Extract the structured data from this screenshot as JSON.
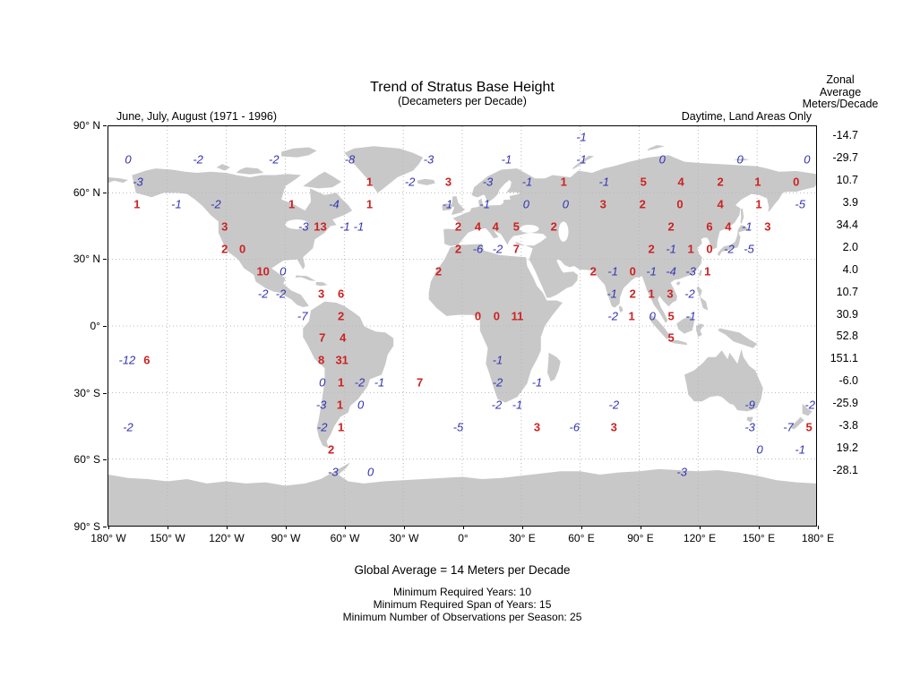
{
  "header": {
    "title": "Trend of Stratus Base Height",
    "subtitle": "(Decameters per Decade)",
    "left_caption": "June, July, August (1971 - 1996)",
    "right_caption": "Daytime, Land Areas Only"
  },
  "footer": {
    "global_average": "Global Average = 14 Meters per Decade",
    "notes": [
      "Minimum Required Years: 10",
      "Minimum Required Span of Years: 15",
      "Minimum Number of Observations per Season: 25"
    ]
  },
  "colors": {
    "positive": "#cc2222",
    "negative": "#3333b3",
    "land": "#c8c8c8",
    "grid": "#b8b8b8",
    "text": "#000000"
  },
  "chart_data": {
    "type": "scatter",
    "subtype": "gridded-value-world-map",
    "title": "Trend of Stratus Base Height",
    "units_label": "(Decameters per Decade)",
    "projection": "equirectangular",
    "lon_range": [
      -180,
      180
    ],
    "lat_range": [
      -90,
      90
    ],
    "grid": "dotted 30-degree graticule",
    "x_ticks": [
      {
        "lon": -180,
        "label": "180° W"
      },
      {
        "lon": -150,
        "label": "150° W"
      },
      {
        "lon": -120,
        "label": "120° W"
      },
      {
        "lon": -90,
        "label": "90° W"
      },
      {
        "lon": -60,
        "label": "60° W"
      },
      {
        "lon": -30,
        "label": "30° W"
      },
      {
        "lon": 0,
        "label": "0°"
      },
      {
        "lon": 30,
        "label": "30° E"
      },
      {
        "lon": 60,
        "label": "60° E"
      },
      {
        "lon": 90,
        "label": "90° E"
      },
      {
        "lon": 120,
        "label": "120° E"
      },
      {
        "lon": 150,
        "label": "150° E"
      },
      {
        "lon": 180,
        "label": "180° E"
      }
    ],
    "y_ticks": [
      {
        "lat": 90,
        "label": "90° N"
      },
      {
        "lat": 60,
        "label": "60° N"
      },
      {
        "lat": 30,
        "label": "30° N"
      },
      {
        "lat": 0,
        "label": "0°"
      },
      {
        "lat": -30,
        "label": "30° S"
      },
      {
        "lat": -60,
        "label": "60° S"
      },
      {
        "lat": -90,
        "label": "90° S"
      }
    ],
    "point_format": [
      "lon",
      "lat",
      "value",
      "color: r=red upright bold, b=blue italic"
    ],
    "points": [
      [
        60,
        85,
        "-1",
        "b"
      ],
      [
        -170,
        75,
        "0",
        "b"
      ],
      [
        -134.5,
        75,
        "-2",
        "b"
      ],
      [
        -96,
        75,
        "-2",
        "b"
      ],
      [
        -57.5,
        75,
        "-8",
        "b"
      ],
      [
        -17.5,
        75,
        "-3",
        "b"
      ],
      [
        22,
        75,
        "-1",
        "b"
      ],
      [
        60,
        75,
        "-1",
        "b"
      ],
      [
        101,
        75,
        "0",
        "b"
      ],
      [
        140.5,
        75,
        "0",
        "b"
      ],
      [
        174.5,
        75,
        "0",
        "b"
      ],
      [
        -165,
        65,
        "-3",
        "b"
      ],
      [
        -47.5,
        65,
        "1",
        "r"
      ],
      [
        -27,
        65,
        "-2",
        "b"
      ],
      [
        -7.5,
        65,
        "3",
        "r"
      ],
      [
        12.5,
        65,
        "-3",
        "b"
      ],
      [
        32.5,
        65,
        "-1",
        "b"
      ],
      [
        51,
        65,
        "1",
        "r"
      ],
      [
        71.5,
        65,
        "-1",
        "b"
      ],
      [
        91.5,
        65,
        "5",
        "r"
      ],
      [
        110.5,
        65,
        "4",
        "r"
      ],
      [
        130.5,
        65,
        "2",
        "r"
      ],
      [
        149.5,
        65,
        "1",
        "r"
      ],
      [
        169,
        65,
        "0",
        "r"
      ],
      [
        -165.5,
        55,
        "1",
        "r"
      ],
      [
        -145.5,
        55,
        "-1",
        "b"
      ],
      [
        -125.5,
        55,
        "-2",
        "b"
      ],
      [
        -87,
        55,
        "1",
        "r"
      ],
      [
        -65.5,
        55,
        "-4",
        "b"
      ],
      [
        -47.5,
        55,
        "1",
        "r"
      ],
      [
        -8,
        55,
        "-1",
        "b"
      ],
      [
        11,
        55,
        "-1",
        "b"
      ],
      [
        32,
        55,
        "0",
        "b"
      ],
      [
        52,
        55,
        "0",
        "b"
      ],
      [
        71,
        55,
        "3",
        "r"
      ],
      [
        91,
        55,
        "2",
        "r"
      ],
      [
        110,
        55,
        "0",
        "r"
      ],
      [
        130.5,
        55,
        "4",
        "r"
      ],
      [
        150,
        55,
        "1",
        "r"
      ],
      [
        171,
        55,
        "-5",
        "b"
      ],
      [
        -121,
        45,
        "3",
        "r"
      ],
      [
        -81,
        45,
        "-3",
        "b"
      ],
      [
        -72.5,
        45,
        "13",
        "r"
      ],
      [
        -60,
        45,
        "-1",
        "b"
      ],
      [
        -53,
        45,
        "-1",
        "b"
      ],
      [
        -2.5,
        45,
        "2",
        "r"
      ],
      [
        7.5,
        45,
        "4",
        "r"
      ],
      [
        16.5,
        45,
        "4",
        "r"
      ],
      [
        27,
        45,
        "5",
        "r"
      ],
      [
        46,
        45,
        "2",
        "r"
      ],
      [
        105.5,
        45,
        "2",
        "r"
      ],
      [
        125,
        45,
        "6",
        "r"
      ],
      [
        134.5,
        45,
        "4",
        "r"
      ],
      [
        144,
        45,
        "-1",
        "b"
      ],
      [
        154.5,
        45,
        "3",
        "r"
      ],
      [
        -121,
        35,
        "2",
        "r"
      ],
      [
        -112,
        35,
        "0",
        "r"
      ],
      [
        -2.5,
        35,
        "2",
        "r"
      ],
      [
        7.5,
        35,
        "-6",
        "b"
      ],
      [
        17.5,
        35,
        "-2",
        "b"
      ],
      [
        27,
        35,
        "7",
        "r"
      ],
      [
        95.5,
        35,
        "2",
        "r"
      ],
      [
        105.5,
        35,
        "-1",
        "b"
      ],
      [
        115.5,
        35,
        "1",
        "r"
      ],
      [
        125,
        35,
        "0",
        "r"
      ],
      [
        135,
        35,
        "-2",
        "b"
      ],
      [
        145,
        35,
        "-5",
        "b"
      ],
      [
        -101.5,
        25,
        "10",
        "r"
      ],
      [
        -91.5,
        25,
        "0",
        "b"
      ],
      [
        -12.5,
        25,
        "2",
        "r"
      ],
      [
        66,
        25,
        "2",
        "r"
      ],
      [
        76,
        25,
        "-1",
        "b"
      ],
      [
        86,
        25,
        "0",
        "r"
      ],
      [
        95.5,
        25,
        "-1",
        "b"
      ],
      [
        105.5,
        25,
        "-4",
        "b"
      ],
      [
        115.5,
        25,
        "-3",
        "b"
      ],
      [
        124,
        25,
        "1",
        "r"
      ],
      [
        -101.5,
        15,
        "-2",
        "b"
      ],
      [
        -92.5,
        15,
        "-2",
        "b"
      ],
      [
        -72,
        15,
        "3",
        "r"
      ],
      [
        -62,
        15,
        "6",
        "r"
      ],
      [
        75.5,
        15,
        "-1",
        "b"
      ],
      [
        86,
        15,
        "2",
        "r"
      ],
      [
        95.5,
        15,
        "1",
        "r"
      ],
      [
        105,
        15,
        "3",
        "r"
      ],
      [
        115,
        15,
        "-2",
        "b"
      ],
      [
        -81.5,
        5,
        "-7",
        "b"
      ],
      [
        -62,
        5,
        "2",
        "r"
      ],
      [
        7.5,
        5,
        "0",
        "r"
      ],
      [
        17,
        5,
        "0",
        "r"
      ],
      [
        27.5,
        5,
        "11",
        "r"
      ],
      [
        76,
        5,
        "-2",
        "b"
      ],
      [
        85.5,
        5,
        "1",
        "r"
      ],
      [
        96,
        5,
        "0",
        "b"
      ],
      [
        105.5,
        5,
        "5",
        "r"
      ],
      [
        115.5,
        5,
        "-1",
        "b"
      ],
      [
        -71.5,
        -5,
        "7",
        "r"
      ],
      [
        -61,
        -5,
        "4",
        "r"
      ],
      [
        105.5,
        -5,
        "5",
        "r"
      ],
      [
        -170.5,
        -15,
        "-12",
        "b"
      ],
      [
        -160.5,
        -15,
        "6",
        "r"
      ],
      [
        -72,
        -15,
        "8",
        "r"
      ],
      [
        -61.5,
        -15,
        "31",
        "r"
      ],
      [
        17.5,
        -15,
        "-1",
        "b"
      ],
      [
        -71.5,
        -25,
        "0",
        "b"
      ],
      [
        -62,
        -25,
        "1",
        "r"
      ],
      [
        -52.5,
        -25,
        "-2",
        "b"
      ],
      [
        -42.5,
        -25,
        "-1",
        "b"
      ],
      [
        -22,
        -25,
        "7",
        "r"
      ],
      [
        17.5,
        -25,
        "-2",
        "b"
      ],
      [
        37.5,
        -25,
        "-1",
        "b"
      ],
      [
        -72,
        -35,
        "-3",
        "b"
      ],
      [
        -62.5,
        -35,
        "1",
        "r"
      ],
      [
        -52,
        -35,
        "0",
        "b"
      ],
      [
        17,
        -35,
        "-2",
        "b"
      ],
      [
        27.5,
        -35,
        "-1",
        "b"
      ],
      [
        76.5,
        -35,
        "-2",
        "b"
      ],
      [
        145.5,
        -35,
        "-9",
        "b"
      ],
      [
        176,
        -35,
        "-2",
        "b"
      ],
      [
        -170,
        -45,
        "-2",
        "b"
      ],
      [
        -71.5,
        -45,
        "-2",
        "b"
      ],
      [
        -62,
        -45,
        "1",
        "r"
      ],
      [
        -2.5,
        -45,
        "-5",
        "b"
      ],
      [
        37.5,
        -45,
        "3",
        "r"
      ],
      [
        56.5,
        -45,
        "-6",
        "b"
      ],
      [
        76.5,
        -45,
        "3",
        "r"
      ],
      [
        145.5,
        -45,
        "-3",
        "b"
      ],
      [
        165,
        -45,
        "-7",
        "b"
      ],
      [
        175.5,
        -45,
        "5",
        "r"
      ],
      [
        -67,
        -55,
        "2",
        "r"
      ],
      [
        150.5,
        -55,
        "0",
        "b"
      ],
      [
        171,
        -55,
        "-1",
        "b"
      ],
      [
        -66,
        -65,
        "-3",
        "b"
      ],
      [
        -47,
        -65,
        "0",
        "b"
      ],
      [
        111,
        -65,
        "-3",
        "b"
      ]
    ],
    "zonal_average": {
      "header_lines": [
        "Zonal",
        "Average",
        "Meters/Decade"
      ],
      "rows": [
        {
          "lat": 85,
          "value": "-14.7"
        },
        {
          "lat": 75,
          "value": "-29.7"
        },
        {
          "lat": 65,
          "value": "10.7"
        },
        {
          "lat": 55,
          "value": "3.9"
        },
        {
          "lat": 45,
          "value": "34.4"
        },
        {
          "lat": 35,
          "value": "2.0"
        },
        {
          "lat": 25,
          "value": "4.0"
        },
        {
          "lat": 15,
          "value": "10.7"
        },
        {
          "lat": 5,
          "value": "30.9"
        },
        {
          "lat": -5,
          "value": "52.8"
        },
        {
          "lat": -15,
          "value": "151.1"
        },
        {
          "lat": -25,
          "value": "-6.0"
        },
        {
          "lat": -35,
          "value": "-25.9"
        },
        {
          "lat": -45,
          "value": "-3.8"
        },
        {
          "lat": -55,
          "value": "19.2"
        },
        {
          "lat": -65,
          "value": "-28.1"
        }
      ]
    }
  }
}
